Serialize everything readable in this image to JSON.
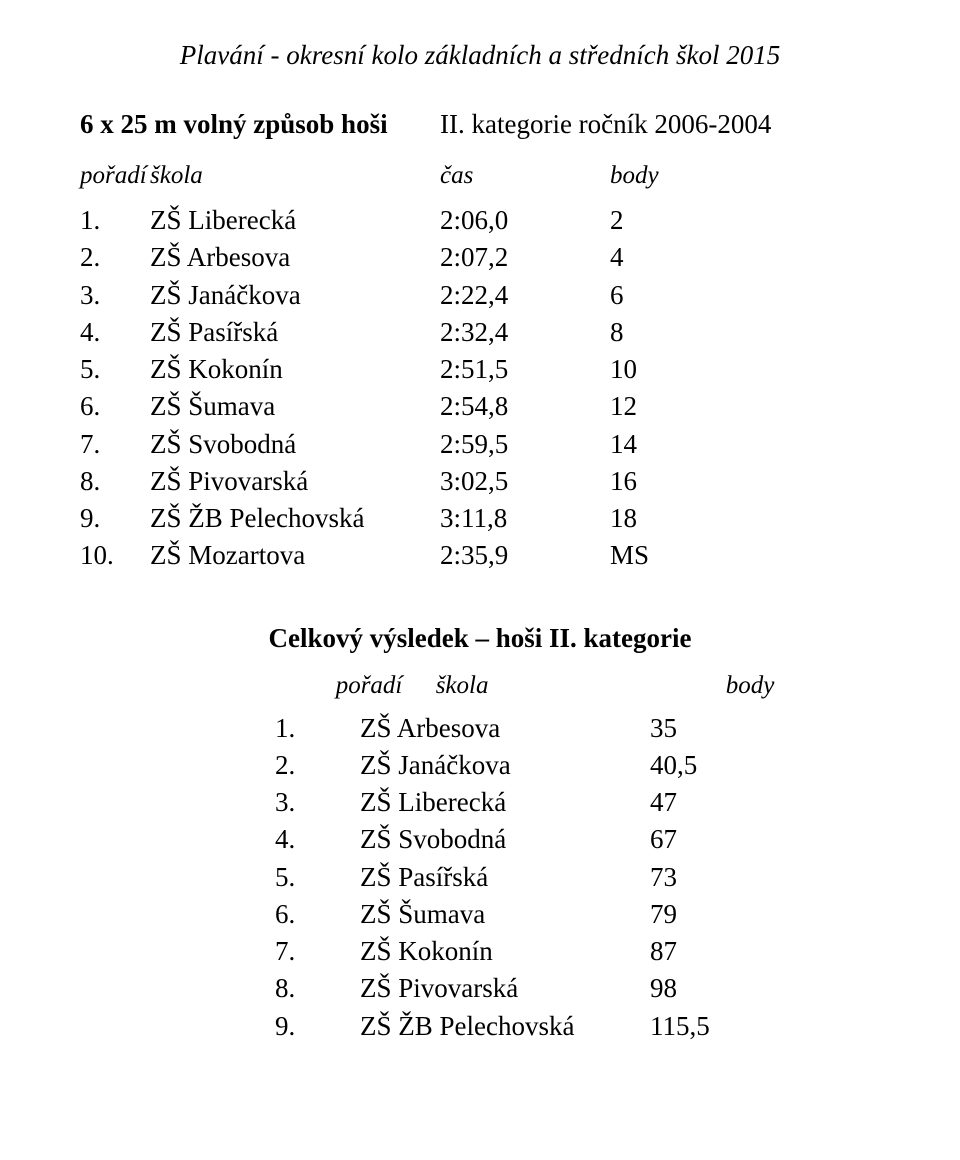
{
  "doc_title": "Plavání - okresní kolo základních a středních škol 2015",
  "event": {
    "name": "6 x 25 m volný způsob hoši",
    "category": "II. kategorie ročník 2006-2004"
  },
  "result_headers": {
    "rank": "pořadí",
    "school": "škola",
    "time": "čas",
    "points": "body"
  },
  "results": [
    {
      "rank": "1.",
      "school": "ZŠ Liberecká",
      "time": "2:06,0",
      "points": "2"
    },
    {
      "rank": "2.",
      "school": "ZŠ Arbesova",
      "time": "2:07,2",
      "points": "4"
    },
    {
      "rank": "3.",
      "school": "ZŠ Janáčkova",
      "time": "2:22,4",
      "points": "6"
    },
    {
      "rank": "4.",
      "school": "ZŠ Pasířská",
      "time": "2:32,4",
      "points": "8"
    },
    {
      "rank": "5.",
      "school": "ZŠ Kokonín",
      "time": "2:51,5",
      "points": "10"
    },
    {
      "rank": "6.",
      "school": "ZŠ Šumava",
      "time": "2:54,8",
      "points": "12"
    },
    {
      "rank": "7.",
      "school": "ZŠ Svobodná",
      "time": "2:59,5",
      "points": "14"
    },
    {
      "rank": "8.",
      "school": "ZŠ Pivovarská",
      "time": "3:02,5",
      "points": "16"
    },
    {
      "rank": "9.",
      "school": "ZŠ ŽB Pelechovská",
      "time": "3:11,8",
      "points": "18"
    },
    {
      "rank": "10.",
      "school": "ZŠ Mozartova",
      "time": "2:35,9",
      "points": "MS"
    }
  ],
  "summary_title": "Celkový výsledek – hoši II. kategorie",
  "summary_headers": {
    "rank": "pořadí",
    "school": "škola",
    "points": "body"
  },
  "summary": [
    {
      "rank": "1.",
      "school": "ZŠ Arbesova",
      "points": "35"
    },
    {
      "rank": "2.",
      "school": "ZŠ Janáčkova",
      "points": "40,5"
    },
    {
      "rank": "3.",
      "school": "ZŠ Liberecká",
      "points": "47"
    },
    {
      "rank": "4.",
      "school": "ZŠ Svobodná",
      "points": "67"
    },
    {
      "rank": "5.",
      "school": "ZŠ Pasířská",
      "points": "73"
    },
    {
      "rank": "6.",
      "school": "ZŠ Šumava",
      "points": "79"
    },
    {
      "rank": "7.",
      "school": "ZŠ Kokonín",
      "points": "87"
    },
    {
      "rank": "8.",
      "school": "ZŠ Pivovarská",
      "points": "98"
    },
    {
      "rank": "9.",
      "school": "ZŠ ŽB Pelechovská",
      "points": "115,5"
    }
  ],
  "style": {
    "background": "#ffffff",
    "text_color": "#000000",
    "font_family": "Times New Roman",
    "title_fontsize_pt": 20,
    "body_fontsize_pt": 20,
    "header_fontsize_pt": 19
  }
}
